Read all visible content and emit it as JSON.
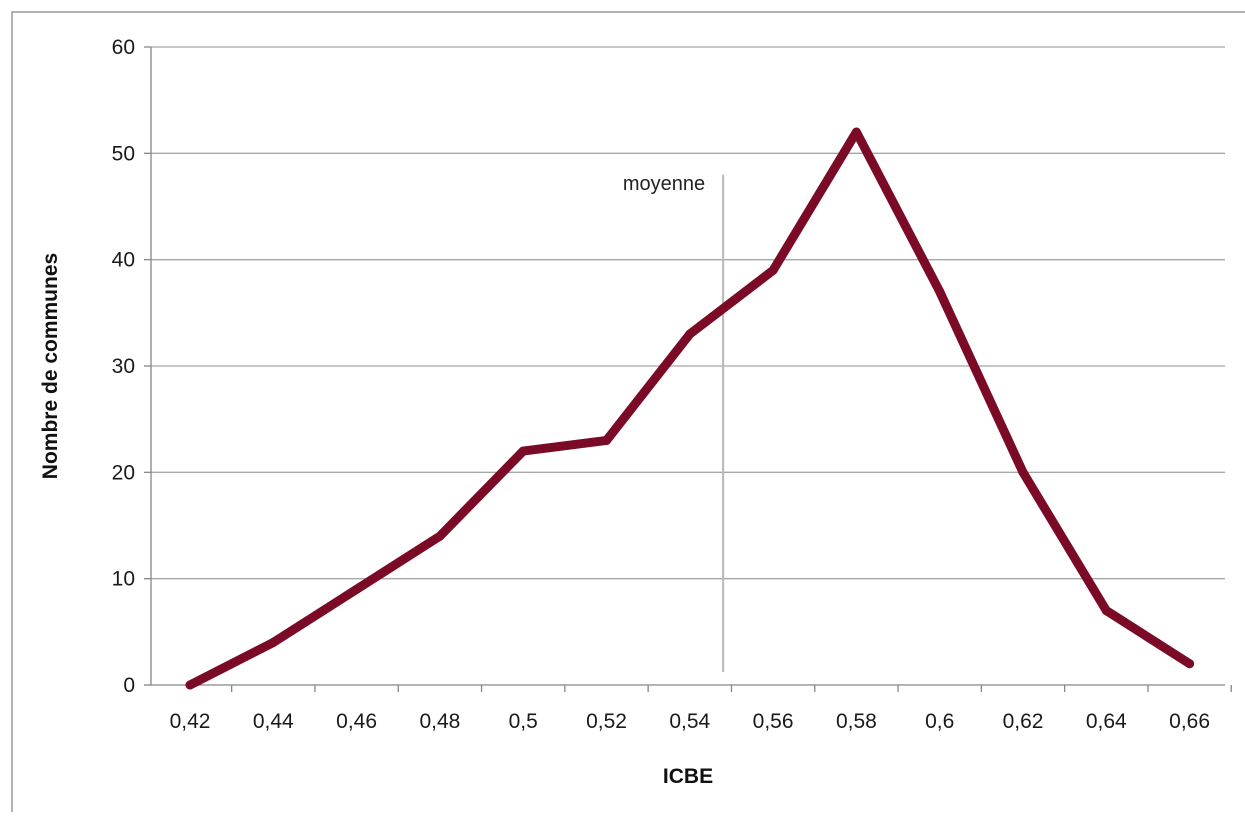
{
  "chart_data": {
    "type": "line",
    "title": "",
    "xlabel": "ICBE",
    "ylabel": "Nombre de communes",
    "categories": [
      "0,42",
      "0,44",
      "0,46",
      "0,48",
      "0,5",
      "0,52",
      "0,54",
      "0,56",
      "0,58",
      "0,6",
      "0,62",
      "0,64",
      "0,66"
    ],
    "y_ticks": [
      "0",
      "10",
      "20",
      "30",
      "40",
      "50",
      "60"
    ],
    "ylim": [
      0,
      60
    ],
    "grid": "horizontal",
    "legend": "none",
    "series": [
      {
        "color": "#7b0a26",
        "values": [
          0,
          4,
          9,
          14,
          22,
          23,
          33,
          39,
          52,
          37,
          20,
          7,
          2
        ]
      }
    ],
    "annotation": {
      "label": "moyenne",
      "x_value": 0.548,
      "y_top": 48,
      "color": "#b8b8b8"
    },
    "colors": {
      "line": "#7b0a26",
      "grid": "#a6a6a6",
      "axis": "#868686",
      "frame": "#9a9a9a"
    }
  }
}
